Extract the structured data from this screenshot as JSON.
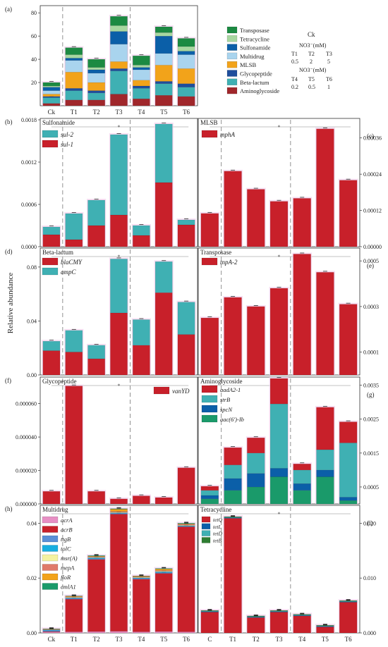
{
  "y_axis_label": "Relative abundance",
  "colors": {
    "red": "#c8202a",
    "teal": "#3fb0b3",
    "blue": "#0b5fa8",
    "green": "#1a9a6a",
    "sky": "#a9d4ee",
    "orange": "#f2a31a",
    "navy": "#1f4e9c",
    "lightgreen": "#a7d7a0",
    "darkgreen": "#1c8a42",
    "maroon": "#a0272b"
  },
  "legend_a": {
    "ck_title": "Ck",
    "no3_top": "NO3⁻(mM)",
    "top_groups": [
      "T1",
      "T2",
      "T3"
    ],
    "top_values": [
      "0.5",
      "2",
      "5"
    ],
    "no3_bottom": "NO3⁻(mM)",
    "bottom_groups": [
      "T4",
      "T5",
      "T6"
    ],
    "bottom_values": [
      "0.2",
      "0.5",
      "1"
    ]
  },
  "chart_data": [
    {
      "panel": "(a)",
      "title": "",
      "type": "bar",
      "stacked": true,
      "categories": [
        "Ck",
        "T1",
        "T2",
        "T3",
        "T4",
        "T5",
        "T6"
      ],
      "ylim": [
        0,
        85
      ],
      "ticks": [
        20,
        40,
        60,
        80
      ],
      "tick_labels": [
        "20",
        "40",
        "60",
        "80"
      ],
      "series": [
        {
          "name": "Aminoglycoside",
          "color": "#a0272b",
          "values": [
            2,
            5,
            5,
            10,
            6,
            9,
            8
          ]
        },
        {
          "name": "Beta-lactum",
          "color": "#3fb0b3",
          "values": [
            5,
            8,
            6,
            20,
            9,
            10,
            8
          ]
        },
        {
          "name": "Glycopeptide",
          "color": "#1f4e9c",
          "values": [
            1,
            2,
            2,
            2,
            2,
            2,
            3
          ]
        },
        {
          "name": "MLSB",
          "color": "#f2a31a",
          "values": [
            2,
            14,
            7,
            6,
            5,
            14,
            13
          ]
        },
        {
          "name": "Multidrug",
          "color": "#a9d4ee",
          "values": [
            3,
            10,
            8,
            15,
            9,
            10,
            12
          ]
        },
        {
          "name": "Sulfonamide",
          "color": "#0b5fa8",
          "values": [
            3,
            2,
            3,
            11,
            2,
            15,
            3
          ]
        },
        {
          "name": "Tetracycline",
          "color": "#a7d7a0",
          "values": [
            1,
            3,
            2,
            5,
            2,
            3,
            4
          ]
        },
        {
          "name": "Transposase",
          "color": "#1c8a42",
          "values": [
            3,
            6,
            7,
            8,
            8,
            5,
            7
          ]
        }
      ]
    },
    {
      "panel": "(b)",
      "title": "Sulfonamide",
      "type": "bar",
      "stacked": true,
      "categories": [
        "Ck",
        "T1",
        "T2",
        "T3",
        "T4",
        "T5",
        "T6"
      ],
      "ylim": [
        0,
        0.0018
      ],
      "ticks": [
        0,
        0.0006,
        0.0012,
        0.0018
      ],
      "tick_labels": [
        "0.0000",
        "0.0006",
        "0.0012",
        "0.0018"
      ],
      "series": [
        {
          "name": "sul-1",
          "color": "#c8202a",
          "values": [
            0.00017,
            0.0001,
            0.0003,
            0.00045,
            0.00016,
            0.00091,
            0.00031
          ]
        },
        {
          "name": "sul-2",
          "color": "#3fb0b3",
          "values": [
            0.00011,
            0.00037,
            0.00036,
            0.00114,
            0.00014,
            0.00083,
            7e-05
          ]
        }
      ]
    },
    {
      "panel": "(c)",
      "title": "MLSB",
      "type": "bar",
      "stacked": true,
      "categories": [
        "Ck",
        "T1",
        "T2",
        "T3",
        "T4",
        "T5",
        "T6"
      ],
      "ylim": [
        0,
        0.00042
      ],
      "ticks": [
        0,
        0.00012,
        0.00024,
        0.00036
      ],
      "tick_labels": [
        "0.00000",
        "0.00012",
        "0.00024",
        "0.00036"
      ],
      "series": [
        {
          "name": "mphA",
          "color": "#c8202a",
          "values": [
            0.00011,
            0.00025,
            0.00019,
            0.00015,
            0.00016,
            0.00039,
            0.00022
          ]
        }
      ]
    },
    {
      "panel": "(d)",
      "title": "Beta-lactum",
      "type": "bar",
      "stacked": true,
      "categories": [
        "Ck",
        "T1",
        "T2",
        "T3",
        "T4",
        "T5",
        "T6"
      ],
      "ylim": [
        0,
        0.093
      ],
      "ticks": [
        0,
        0.04,
        0.08
      ],
      "tick_labels": [
        "0.00",
        "0.04",
        "0.08"
      ],
      "series": [
        {
          "name": "blaCMY",
          "color": "#c8202a",
          "values": [
            0.018,
            0.017,
            0.012,
            0.046,
            0.022,
            0.061,
            0.03
          ]
        },
        {
          "name": "ampC",
          "color": "#3fb0b3",
          "values": [
            0.007,
            0.016,
            0.01,
            0.04,
            0.019,
            0.023,
            0.024
          ]
        }
      ]
    },
    {
      "panel": "(e)",
      "title": "Transposase",
      "type": "bar",
      "stacked": true,
      "categories": [
        "Ck",
        "T1",
        "T2",
        "T3",
        "T4",
        "T5",
        "T6"
      ],
      "ylim": [
        0,
        0.00055
      ],
      "ticks": [
        0.0001,
        0.0003,
        0.0005
      ],
      "tick_labels": [
        "0.0001",
        "0.0003",
        "0.0005"
      ],
      "series": [
        {
          "name": "tnpA-2",
          "color": "#c8202a",
          "values": [
            0.00025,
            0.00034,
            0.0003,
            0.00038,
            0.00053,
            0.00045,
            0.00031
          ]
        }
      ]
    },
    {
      "panel": "(f)",
      "title": "Glycopeptide",
      "type": "bar",
      "stacked": true,
      "categories": [
        "Ck",
        "T1",
        "T2",
        "T3",
        "T4",
        "T5",
        "T6"
      ],
      "ylim": [
        0,
        7.5e-05
      ],
      "ticks": [
        0,
        2e-05,
        4e-05,
        6e-05
      ],
      "tick_labels": [
        "0.000000",
        "0.000020",
        "0.000040",
        "0.000060"
      ],
      "series": [
        {
          "name": "vanYD",
          "color": "#c8202a",
          "values": [
            7.5e-06,
            7.05e-05,
            7.5e-06,
            3e-06,
            4.8e-06,
            3.8e-06,
            2.16e-05
          ]
        }
      ]
    },
    {
      "panel": "(g)",
      "title": "Aminoglycoside",
      "type": "bar",
      "stacked": true,
      "categories": [
        "Ck",
        "T1",
        "T2",
        "T3",
        "T4",
        "T5",
        "T6"
      ],
      "ylim": [
        0,
        0.0037
      ],
      "ticks": [
        0.0005,
        0.0015,
        0.0025,
        0.0035
      ],
      "tick_labels": [
        "0.0005",
        "0.0015",
        "0.0025",
        "0.0035"
      ],
      "series": [
        {
          "name": "aac(6')-Ib",
          "color": "#1a9a6a",
          "values": [
            0.00015,
            0.0004,
            0.0005,
            0.0008,
            0.0004,
            0.0008,
            0.0001
          ]
        },
        {
          "name": "spcN",
          "color": "#0b5fa8",
          "values": [
            0.0001,
            0.00035,
            0.0004,
            0.00025,
            0.0002,
            0.0002,
            0.0001
          ]
        },
        {
          "name": "strB",
          "color": "#3fb0b3",
          "values": [
            0.00015,
            0.0004,
            0.0006,
            0.0019,
            0.0004,
            0.0006,
            0.0016
          ]
        },
        {
          "name": "aadA2-1",
          "color": "#c8202a",
          "values": [
            0.00012,
            0.00051,
            0.00045,
            0.00075,
            0.00018,
            0.00125,
            0.00062
          ]
        }
      ]
    },
    {
      "panel": "(h)",
      "title": "Multidrug",
      "type": "bar",
      "stacked": true,
      "categories": [
        "Ck",
        "T1",
        "T2",
        "T3",
        "T4",
        "T5",
        "T6"
      ],
      "ylim": [
        0,
        0.046
      ],
      "ticks": [
        0,
        0.02,
        0.04
      ],
      "tick_labels": [
        "0.00",
        "0.02",
        "0.04"
      ],
      "series": [
        {
          "name": "acrA",
          "color": "#e78fc4",
          "values": [
            0.0003,
            0.0004,
            0.0005,
            0.0006,
            0.0004,
            0.0005,
            0.0004
          ]
        },
        {
          "name": "acrB",
          "color": "#c8202a",
          "values": [
            0.0002,
            0.0119,
            0.0263,
            0.0427,
            0.0192,
            0.0212,
            0.0383
          ]
        },
        {
          "name": "ttgB",
          "color": "#5a8fd6",
          "values": [
            0.0004,
            0.0003,
            0.0003,
            0.0003,
            0.0003,
            0.0003,
            0.0002
          ]
        },
        {
          "name": "tolC",
          "color": "#18aee0",
          "values": [
            0.0002,
            0.0002,
            0.0003,
            0.0002,
            0.0002,
            0.0003,
            0.0002
          ]
        },
        {
          "name": "msr(A)",
          "color": "#f4f2a0",
          "values": [
            0.0001,
            0.0002,
            0.0002,
            0.0002,
            0.0002,
            0.0002,
            0.0002
          ]
        },
        {
          "name": "mepA",
          "color": "#e07a6a",
          "values": [
            0.0001,
            0.0002,
            0.0002,
            0.0003,
            0.0002,
            0.0003,
            0.0003
          ]
        },
        {
          "name": "floR",
          "color": "#f2a31a",
          "values": [
            0.0001,
            0.0002,
            0.0002,
            0.0008,
            0.0002,
            0.0005,
            0.0002
          ]
        },
        {
          "name": "cmlA1",
          "color": "#1a9a6a",
          "values": [
            0.0001,
            0.0001,
            0.0002,
            0.0002,
            0.0001,
            0.0002,
            0.0002
          ]
        }
      ]
    },
    {
      "panel": "(i)",
      "title": "Tetracycline",
      "type": "bar",
      "stacked": true,
      "categories": [
        "C",
        "T1",
        "T2",
        "T3",
        "T4",
        "T5",
        "T6"
      ],
      "ylim": [
        0,
        0.023
      ],
      "ticks": [
        0,
        0.01,
        0.02
      ],
      "tick_labels": [
        "0.000",
        "0.010",
        "0.020"
      ],
      "series": [
        {
          "name": "tetQ",
          "color": "#c8202a",
          "values": [
            0.0038,
            0.0209,
            0.0028,
            0.0038,
            0.0031,
            0.0011,
            0.0056
          ]
        },
        {
          "name": "tetL",
          "color": "#0b5fa8",
          "values": [
            0.0001,
            0.0001,
            0.0001,
            0.0001,
            0.0001,
            0.0001,
            0.0001
          ]
        },
        {
          "name": "tetD",
          "color": "#3fb0b3",
          "values": [
            0.0001,
            0.0001,
            0.0001,
            0.0001,
            0.0001,
            0.0001,
            0.0001
          ]
        },
        {
          "name": "tetB",
          "color": "#2e7d32",
          "values": [
            0.0001,
            0.0001,
            0.0001,
            0.0001,
            0.0001,
            0.0001,
            0.0001
          ]
        }
      ]
    }
  ]
}
